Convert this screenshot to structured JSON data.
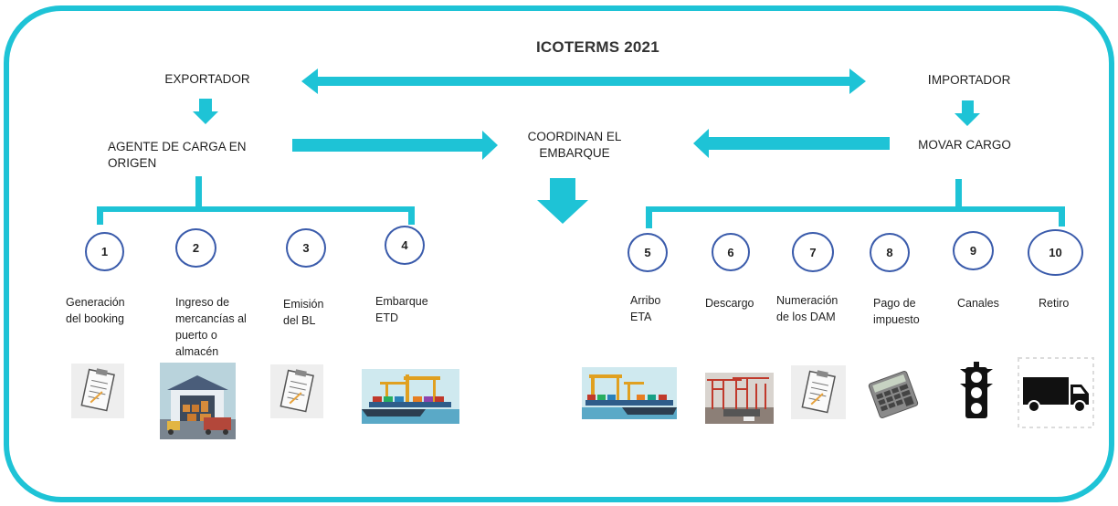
{
  "title": "ICOTERMS 2021",
  "exporter": "EXPORTADOR",
  "importer_prefix": "I",
  "importer_rest": "MPORTADOR",
  "origin_agent": "AGENTE DE CARGA EN\nORIGEN",
  "coordinate": "COORDINAN EL\nEMBARQUE",
  "movar": "MOVAR CARGO",
  "steps": [
    {
      "num": "1",
      "label": "Generación\ndel booking",
      "icon": "clipboard-icon"
    },
    {
      "num": "2",
      "label": "Ingreso de\nmercancías al\npuerto o\nalmacén",
      "icon": "warehouse-icon"
    },
    {
      "num": "3",
      "label": "Emisión\ndel BL",
      "icon": "clipboard-icon"
    },
    {
      "num": "4",
      "label": "Embarque\nETD",
      "icon": "ship-port-icon"
    },
    {
      "num": "5",
      "label": "Arribo\nETA",
      "icon": "ship-port-icon"
    },
    {
      "num": "6",
      "label": "Descargo",
      "icon": "port-cranes-icon"
    },
    {
      "num": "7",
      "label": "Numeración\nde los DAM",
      "icon": "clipboard-icon"
    },
    {
      "num": "8",
      "label": "Pago de\nimpuesto",
      "icon": "calculator-icon"
    },
    {
      "num": "9",
      "label": "Canales",
      "icon": "traffic-light-icon"
    },
    {
      "num": "10",
      "label": "Retiro",
      "icon": "truck-icon"
    }
  ],
  "colors": {
    "accent": "#1ec3d6",
    "circle_border": "#3a5bab"
  }
}
